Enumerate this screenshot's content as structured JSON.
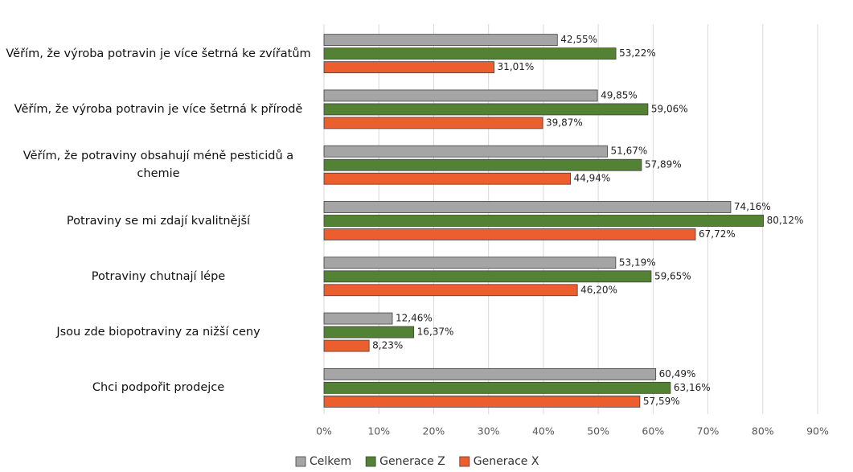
{
  "chart_data": {
    "type": "hbar",
    "categories": [
      "Věřím, že výroba potravin je více šetrná ke zvířatům",
      "Věřím, že výroba potravin je více šetrná k přírodě",
      "Věřím, že potraviny obsahují méně pesticidů a chemie",
      "Potraviny se mi zdají kvalitnější",
      "Potraviny chutnají lépe",
      "Jsou zde biopotraviny za nižší ceny",
      "Chci podpořit prodejce"
    ],
    "series": [
      {
        "name": "Celkem",
        "color": "#a5a5a5",
        "values": [
          42.55,
          49.85,
          51.67,
          74.16,
          53.19,
          12.46,
          60.49
        ],
        "value_labels": [
          "42,55%",
          "49,85%",
          "51,67%",
          "74,16%",
          "53,19%",
          "12,46%",
          "60,49%"
        ]
      },
      {
        "name": "Generace Z",
        "color": "#548235",
        "values": [
          53.22,
          59.06,
          57.89,
          80.12,
          59.65,
          16.37,
          63.16
        ],
        "value_labels": [
          "53,22%",
          "59,06%",
          "57,89%",
          "80,12%",
          "59,65%",
          "16,37%",
          "63,16%"
        ]
      },
      {
        "name": "Generace X",
        "color": "#ed5e2f",
        "values": [
          31.01,
          39.87,
          44.94,
          67.72,
          46.2,
          8.23,
          57.59
        ],
        "value_labels": [
          "31,01%",
          "39,87%",
          "44,94%",
          "67,72%",
          "46,20%",
          "8,23%",
          "57,59%"
        ]
      }
    ],
    "xlim": [
      0,
      90
    ],
    "xticks": [
      {
        "value": 0,
        "label": "0%"
      },
      {
        "value": 10,
        "label": "10%"
      },
      {
        "value": 20,
        "label": "20%"
      },
      {
        "value": 30,
        "label": "30%"
      },
      {
        "value": 40,
        "label": "40%"
      },
      {
        "value": 50,
        "label": "50%"
      },
      {
        "value": 60,
        "label": "60%"
      },
      {
        "value": 70,
        "label": "70%"
      },
      {
        "value": 80,
        "label": "80%"
      },
      {
        "value": 90,
        "label": "90%"
      }
    ],
    "grid": true,
    "legend": "bottom"
  }
}
